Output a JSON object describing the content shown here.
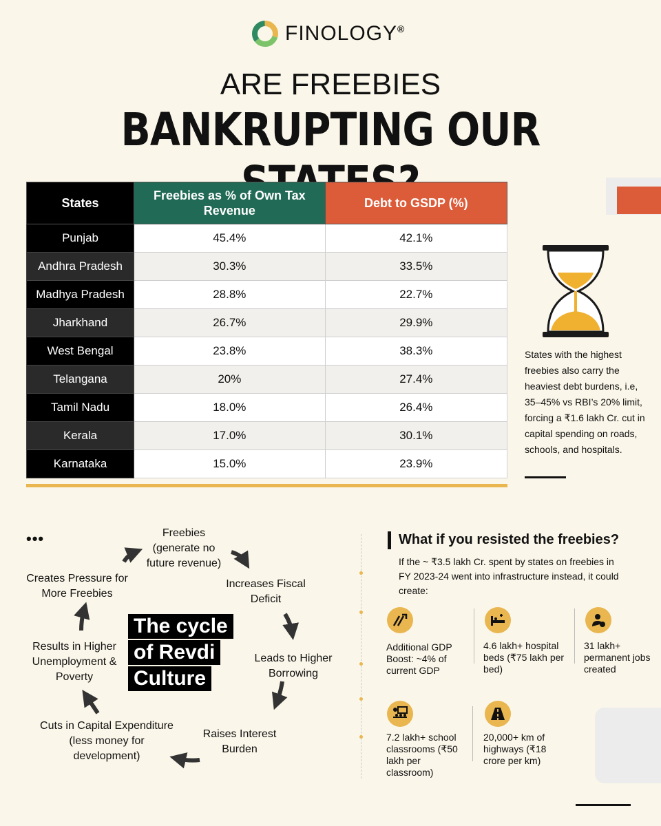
{
  "brand": {
    "name": "FINOLOGY",
    "reg": "®"
  },
  "title": {
    "line1": "ARE FREEBIES",
    "line2": "BANKRUPTING OUR STATES?"
  },
  "table": {
    "headers": [
      "States",
      "Freebies as % of Own Tax Revenue",
      "Debt to GSDP (%)"
    ],
    "rows": [
      {
        "state": "Punjab",
        "freebies": "45.4%",
        "debt": "42.1%"
      },
      {
        "state": "Andhra Pradesh",
        "freebies": "30.3%",
        "debt": "33.5%"
      },
      {
        "state": "Madhya Pradesh",
        "freebies": "28.8%",
        "debt": "22.7%"
      },
      {
        "state": "Jharkhand",
        "freebies": "26.7%",
        "debt": "29.9%"
      },
      {
        "state": "West Bengal",
        "freebies": "23.8%",
        "debt": "38.3%"
      },
      {
        "state": "Telangana",
        "freebies": "20%",
        "debt": "27.4%"
      },
      {
        "state": "Tamil Nadu",
        "freebies": "18.0%",
        "debt": "26.4%"
      },
      {
        "state": "Kerala",
        "freebies": "17.0%",
        "debt": "30.1%"
      },
      {
        "state": "Karnataka",
        "freebies": "15.0%",
        "debt": "23.9%"
      }
    ]
  },
  "side_note": "States with the highest freebies also carry the heaviest debt burdens, i.e, 35–45% vs RBI’s 20% limit, forcing a ₹1.6 lakh Cr. cut in capital spending on roads, schools, and hospitals.",
  "cycle": {
    "dots": "•••",
    "title_lines": [
      "The cycle",
      "of Revdi",
      "Culture"
    ],
    "steps": [
      "Freebies (generate no future revenue)",
      "Increases Fiscal Deficit",
      "Leads to Higher Borrowing",
      "Raises Interest Burden",
      "Cuts in Capital Expenditure (less money for development)",
      "Results in Higher Unemployment & Poverty",
      "Creates Pressure for More Freebies"
    ]
  },
  "what_if": {
    "title": "What if you resisted the freebies?",
    "description": "If the ~ ₹3.5 lakh Cr. spent by states on freebies in FY 2023-24 went into infrastructure instead, it could create:",
    "stats": [
      {
        "icon": "gdp-growth-icon",
        "text": "Additional GDP Boost: ~4% of current GDP"
      },
      {
        "icon": "hospital-bed-icon",
        "text": "4.6 lakh+ hospital beds (₹75 lakh per bed)"
      },
      {
        "icon": "worker-icon",
        "text": "31 lakh+ permanent jobs created"
      },
      {
        "icon": "classroom-icon",
        "text": "7.2 lakh+ school classrooms (₹50 lakh per classroom)"
      },
      {
        "icon": "highway-icon",
        "text": "20,000+ km of highways (₹18 crore per km)"
      }
    ]
  },
  "colors": {
    "background": "#faf6e9",
    "green": "#216a55",
    "orange": "#dc5c39",
    "gold": "#e9b64f",
    "black": "#000000"
  }
}
